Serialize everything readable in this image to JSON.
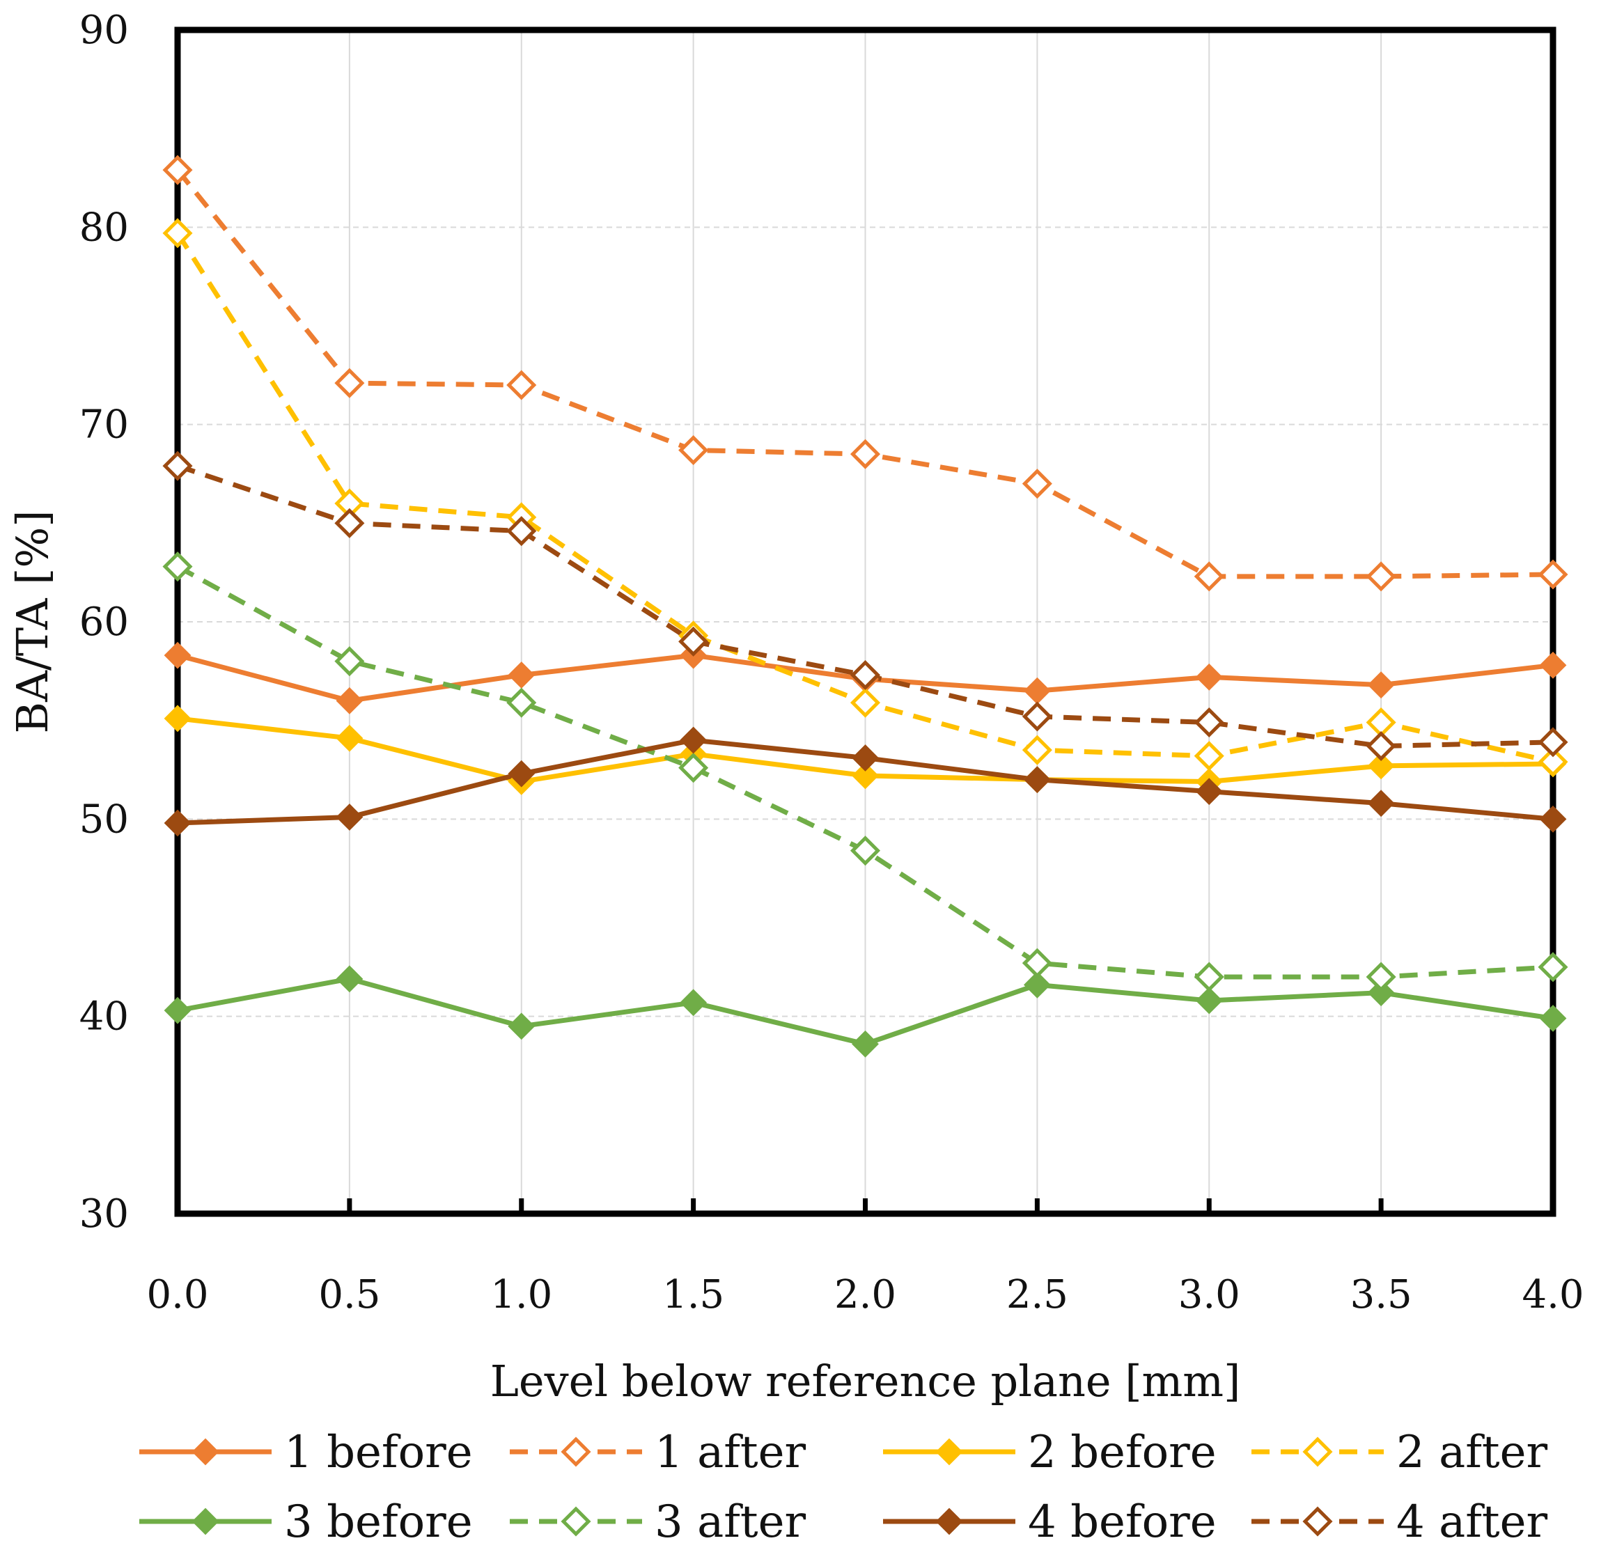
{
  "chart_data": {
    "type": "line",
    "title": "",
    "xlabel": "Level below reference plane [mm]",
    "ylabel": "BA/TA [%]",
    "x": [
      0.0,
      0.5,
      1.0,
      1.5,
      2.0,
      2.5,
      3.0,
      3.5,
      4.0
    ],
    "x_tick_labels": [
      "0.0",
      "0.5",
      "1.0",
      "1.5",
      "2.0",
      "2.5",
      "3.0",
      "3.5",
      "4.0"
    ],
    "y_ticks": [
      30,
      40,
      50,
      60,
      70,
      80,
      90
    ],
    "y_tick_labels": [
      "30",
      "40",
      "50",
      "60",
      "70",
      "80",
      "90"
    ],
    "xlim": [
      0.0,
      4.0
    ],
    "ylim": [
      30,
      90
    ],
    "grid": true,
    "legend_position": "bottom",
    "series": [
      {
        "name": "1 before",
        "color": "#ED7D31",
        "line": "solid",
        "marker": "diamond-filled",
        "values": [
          58.3,
          56.0,
          57.3,
          58.3,
          57.1,
          56.5,
          57.2,
          56.8,
          57.8
        ]
      },
      {
        "name": "1 after",
        "color": "#ED7D31",
        "line": "dashed",
        "marker": "diamond-open",
        "values": [
          82.9,
          72.1,
          72.0,
          68.7,
          68.5,
          67.0,
          62.3,
          62.3,
          62.4
        ]
      },
      {
        "name": "2 before",
        "color": "#FFC000",
        "line": "solid",
        "marker": "diamond-filled",
        "values": [
          55.1,
          54.1,
          51.9,
          53.3,
          52.2,
          52.0,
          51.9,
          52.7,
          52.8
        ]
      },
      {
        "name": "2 after",
        "color": "#FFC000",
        "line": "dashed",
        "marker": "diamond-open",
        "values": [
          79.7,
          66.0,
          65.3,
          59.3,
          55.9,
          53.5,
          53.2,
          54.9,
          52.9
        ]
      },
      {
        "name": "3 before",
        "color": "#70AD47",
        "line": "solid",
        "marker": "diamond-filled",
        "values": [
          40.3,
          41.9,
          39.5,
          40.7,
          38.6,
          41.6,
          40.8,
          41.2,
          39.9
        ]
      },
      {
        "name": "3 after",
        "color": "#70AD47",
        "line": "dashed",
        "marker": "diamond-open",
        "values": [
          62.8,
          58.0,
          55.9,
          52.6,
          48.4,
          42.7,
          42.0,
          42.0,
          42.5
        ]
      },
      {
        "name": "4 before",
        "color": "#9C4A11",
        "line": "solid",
        "marker": "diamond-filled",
        "values": [
          49.8,
          50.1,
          52.3,
          54.0,
          53.1,
          52.0,
          51.4,
          50.8,
          50.0
        ]
      },
      {
        "name": "4 after",
        "color": "#9C4A11",
        "line": "dashed",
        "marker": "diamond-open",
        "values": [
          67.9,
          65.0,
          64.6,
          59.0,
          57.3,
          55.2,
          54.9,
          53.7,
          53.9
        ]
      }
    ]
  }
}
